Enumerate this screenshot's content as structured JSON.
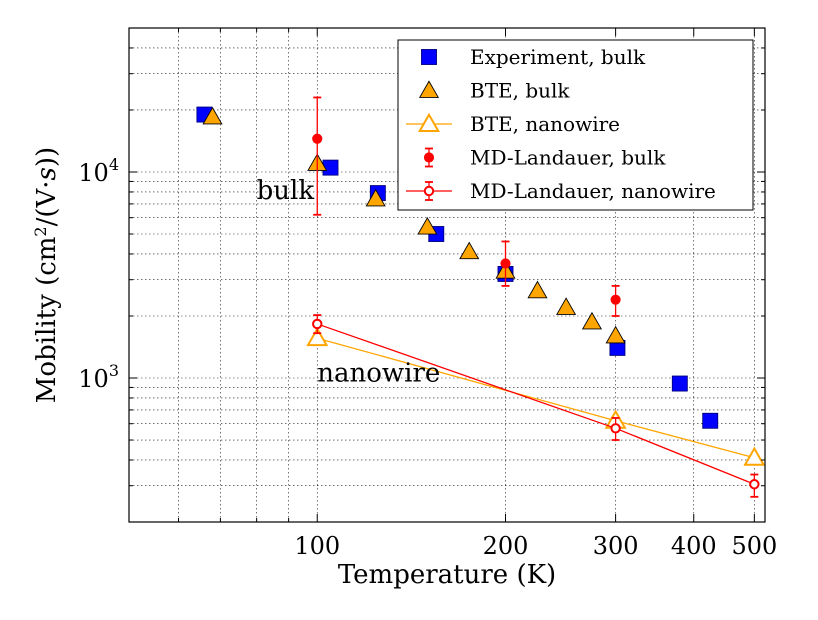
{
  "chart_data": {
    "type": "scatter",
    "title": "",
    "xlabel": "Temperature (K)",
    "ylabel_parts": [
      "Mobility (cm",
      "2",
      "/(V·",
      "s",
      "))"
    ],
    "xscale": "log",
    "yscale": "log",
    "xlim": [
      50,
      520
    ],
    "ylim": [
      200,
      50000
    ],
    "grid": true,
    "legend_position": "top-right",
    "xticks": [
      {
        "value": 100,
        "label": "100"
      },
      {
        "value": 200,
        "label": "200"
      },
      {
        "value": 300,
        "label": "300"
      },
      {
        "value": 400,
        "label": "400"
      },
      {
        "value": 500,
        "label": "500"
      }
    ],
    "yticks": [
      {
        "value": 1000,
        "base": "10",
        "exp": "3"
      },
      {
        "value": 10000,
        "base": "10",
        "exp": "4"
      }
    ],
    "annotations": [
      {
        "text": "bulk",
        "x": 80,
        "y": 7400
      },
      {
        "text": "nanowire",
        "x": 100,
        "y": 960
      }
    ],
    "series": [
      {
        "name": "Experiment, bulk",
        "marker": "square",
        "filled": true,
        "line": false,
        "color": "#0000ff",
        "edge": "#000080",
        "points": [
          {
            "x": 66,
            "y": 19000
          },
          {
            "x": 105,
            "y": 10500
          },
          {
            "x": 125,
            "y": 7900
          },
          {
            "x": 155,
            "y": 5000
          },
          {
            "x": 200,
            "y": 3200
          },
          {
            "x": 302,
            "y": 1400
          },
          {
            "x": 380,
            "y": 940
          },
          {
            "x": 425,
            "y": 620
          }
        ]
      },
      {
        "name": "BTE, bulk",
        "marker": "triangle",
        "filled": true,
        "line": false,
        "color": "#ffa500",
        "edge": "#000000",
        "points": [
          {
            "x": 68,
            "y": 18500
          },
          {
            "x": 100,
            "y": 11000
          },
          {
            "x": 124,
            "y": 7400
          },
          {
            "x": 150,
            "y": 5400
          },
          {
            "x": 175,
            "y": 4100
          },
          {
            "x": 200,
            "y": 3300
          },
          {
            "x": 225,
            "y": 2650
          },
          {
            "x": 250,
            "y": 2200
          },
          {
            "x": 275,
            "y": 1870
          },
          {
            "x": 300,
            "y": 1600
          }
        ]
      },
      {
        "name": "BTE, nanowire",
        "marker": "triangle",
        "filled": false,
        "line": true,
        "color": "#ffa500",
        "edge": "#ffa500",
        "points": [
          {
            "x": 100,
            "y": 1560
          },
          {
            "x": 300,
            "y": 620
          },
          {
            "x": 500,
            "y": 410
          }
        ]
      },
      {
        "name": "MD-Landauer, bulk",
        "marker": "circle",
        "filled": true,
        "line": false,
        "color": "#ff0000",
        "edge": "#ff0000",
        "points": [
          {
            "x": 100,
            "y": 14500,
            "lo": 6200,
            "hi": 23000
          },
          {
            "x": 200,
            "y": 3600,
            "lo": 2800,
            "hi": 4600
          },
          {
            "x": 300,
            "y": 2400,
            "lo": 2000,
            "hi": 2800
          }
        ]
      },
      {
        "name": "MD-Landauer, nanowire",
        "marker": "circle",
        "filled": false,
        "line": true,
        "color": "#ff0000",
        "edge": "#ff0000",
        "points": [
          {
            "x": 100,
            "y": 1830,
            "lo": 1650,
            "hi": 2020
          },
          {
            "x": 300,
            "y": 570,
            "lo": 500,
            "hi": 640
          },
          {
            "x": 500,
            "y": 305,
            "lo": 265,
            "hi": 340
          }
        ]
      }
    ]
  }
}
